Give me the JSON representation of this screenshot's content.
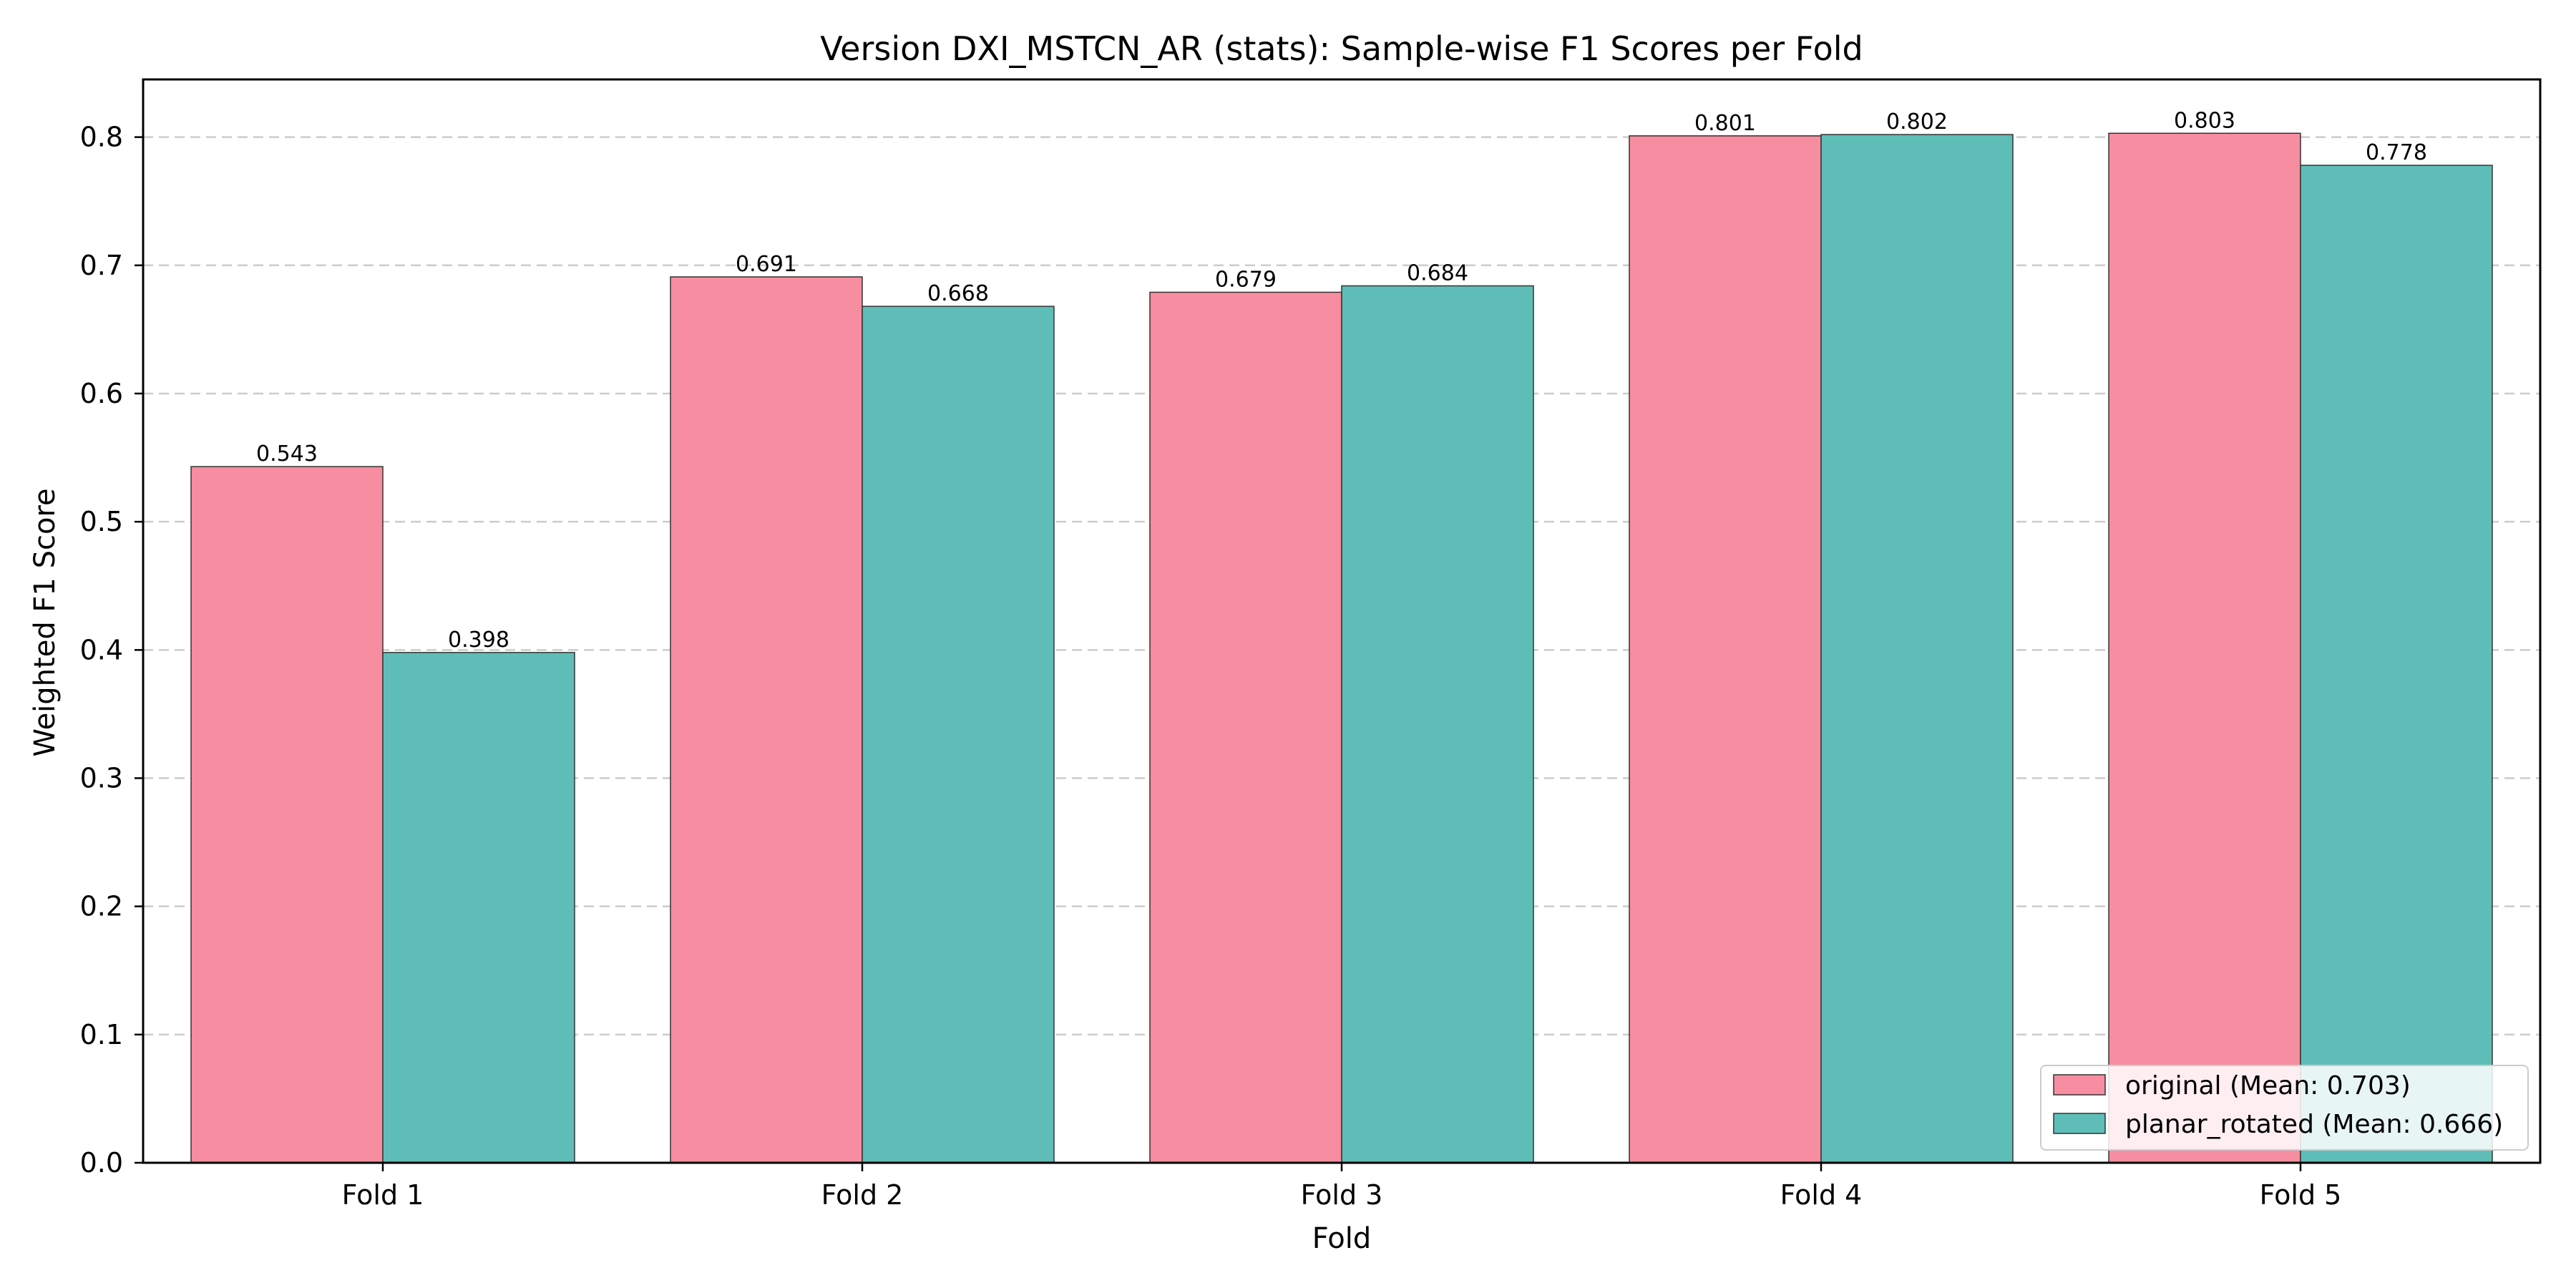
{
  "chart_data": {
    "type": "bar",
    "title": "Version DXI_MSTCN_AR (stats): Sample-wise F1 Scores per Fold",
    "xlabel": "Fold",
    "ylabel": "Weighted F1 Score",
    "categories": [
      "Fold 1",
      "Fold 2",
      "Fold 3",
      "Fold 4",
      "Fold 5"
    ],
    "ylim": [
      0,
      0.845
    ],
    "yticks": [
      0.0,
      0.1,
      0.2,
      0.3,
      0.4,
      0.5,
      0.6,
      0.7,
      0.8
    ],
    "ytick_labels": [
      "0.0",
      "0.1",
      "0.2",
      "0.3",
      "0.4",
      "0.5",
      "0.6",
      "0.7",
      "0.8"
    ],
    "grid": "y-dashed",
    "legend_placement": "lower-right",
    "series": [
      {
        "name": "original",
        "legend_label": "original (Mean: 0.703)",
        "color": "#f78da0",
        "values": [
          0.543,
          0.691,
          0.679,
          0.801,
          0.803
        ],
        "labels": [
          "0.543",
          "0.691",
          "0.679",
          "0.801",
          "0.803"
        ]
      },
      {
        "name": "planar_rotated",
        "legend_label": "planar_rotated (Mean: 0.666)",
        "color": "#5fbdb7",
        "values": [
          0.398,
          0.668,
          0.684,
          0.802,
          0.778
        ],
        "labels": [
          "0.398",
          "0.668",
          "0.684",
          "0.802",
          "0.778"
        ]
      }
    ]
  }
}
